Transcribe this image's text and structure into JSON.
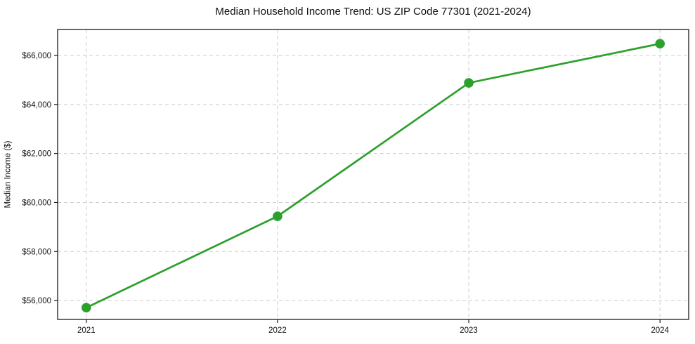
{
  "chart_data": {
    "type": "line",
    "title": "Median Household Income Trend: US ZIP Code 77301 (2021-2024)",
    "xlabel": "",
    "ylabel": "Median Income ($)",
    "x": [
      2021,
      2022,
      2023,
      2024
    ],
    "x_tick_labels": [
      "2021",
      "2022",
      "2023",
      "2024"
    ],
    "series": [
      {
        "name": "Median Household Income",
        "values": [
          55710,
          59440,
          64880,
          66480
        ]
      }
    ],
    "yticks": [
      56000,
      58000,
      60000,
      62000,
      64000,
      66000
    ],
    "y_tick_labels": [
      "$56,000",
      "$58,000",
      "$60,000",
      "$62,000",
      "$64,000",
      "$66,000"
    ],
    "xlim": [
      2020.85,
      2024.15
    ],
    "ylim": [
      55230,
      67060
    ],
    "grid": true,
    "grid_style": "dashed",
    "legend_position": "none",
    "colors": {
      "line": "#2ca02c",
      "marker": "#2ca02c",
      "grid": "#cccccc",
      "axis": "#1a1a1a",
      "text": "#111111",
      "background": "#ffffff"
    }
  }
}
